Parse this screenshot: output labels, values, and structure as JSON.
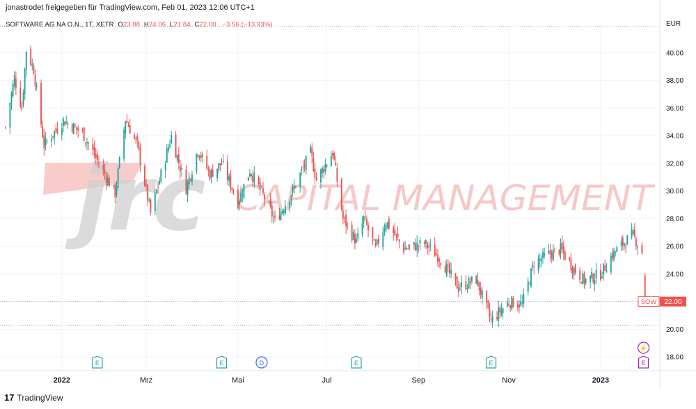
{
  "header": {
    "text": "jonastrodet freigegeben für TradingView.com, Feb 01, 2023 12:06 UTC+1"
  },
  "legend": {
    "symbol": "SOFTWARE AG NA O.N., 1T, XETR",
    "open_label": "O",
    "open": "23.88",
    "high_label": "H",
    "high": "24.06",
    "low_label": "L",
    "low": "21.84",
    "close_label": "C",
    "close": "22.00",
    "change": "−3.56 (−13.93%)"
  },
  "watermark": {
    "logo_text": "jrc",
    "company": "CAPITAL MANAGEMENT"
  },
  "price_tag": {
    "symbol": "SOW",
    "value": "22.00"
  },
  "footer": {
    "logo_mark": "17",
    "brand": "TradingView"
  },
  "colors": {
    "up": "#26a69a",
    "down": "#ef5350",
    "watermark": "#f6c6c4",
    "watermark_gray": "#d0d0d0",
    "earnings_badge": "#26a69a",
    "dividend_badge": "#2962ff",
    "upcoming_badge": "#9c27b0"
  },
  "chart_data": {
    "type": "candlestick",
    "unit": "EUR",
    "ylim": [
      17.3,
      41.8
    ],
    "y_ticks": [
      "18.00",
      "20.00",
      "22.00",
      "24.00",
      "26.00",
      "28.00",
      "30.00",
      "32.00",
      "34.00",
      "36.00",
      "38.00",
      "40.00"
    ],
    "x_ticks": [
      {
        "label": "2022",
        "date": "2022-01-03"
      },
      {
        "label": "Mrz",
        "date": "2022-03-01"
      },
      {
        "label": "Mai",
        "date": "2022-05-02"
      },
      {
        "label": "Jul",
        "date": "2022-07-01"
      },
      {
        "label": "Sep",
        "date": "2022-09-01"
      },
      {
        "label": "Nov",
        "date": "2022-11-01"
      },
      {
        "label": "2023",
        "date": "2023-01-02"
      }
    ],
    "x_range": [
      "2021-11-26",
      "2023-02-11"
    ],
    "reference_lines": [
      20.3
    ],
    "events": [
      {
        "type": "earnings",
        "label": "E",
        "date": "2022-01-27"
      },
      {
        "type": "earnings",
        "label": "E",
        "date": "2022-04-21"
      },
      {
        "type": "dividend",
        "label": "D",
        "date": "2022-05-18"
      },
      {
        "type": "earnings",
        "label": "E",
        "date": "2022-07-21"
      },
      {
        "type": "earnings",
        "label": "E",
        "date": "2022-10-20"
      },
      {
        "type": "earnings",
        "label": "E",
        "date": "2023-01-31",
        "upcoming": true
      },
      {
        "type": "news",
        "label": "⚡",
        "date": "2023-01-31"
      }
    ],
    "close_path": [
      {
        "date": "2021-11-26",
        "close": 34.6
      },
      {
        "date": "2021-12-02",
        "close": 38.2
      },
      {
        "date": "2021-12-07",
        "close": 36.0
      },
      {
        "date": "2021-12-10",
        "close": 40.2
      },
      {
        "date": "2021-12-15",
        "close": 38.8
      },
      {
        "date": "2021-12-22",
        "close": 33.3
      },
      {
        "date": "2022-01-04",
        "close": 35.1
      },
      {
        "date": "2022-01-17",
        "close": 34.2
      },
      {
        "date": "2022-01-28",
        "close": 32.0
      },
      {
        "date": "2022-02-08",
        "close": 29.8
      },
      {
        "date": "2022-02-15",
        "close": 35.2
      },
      {
        "date": "2022-02-23",
        "close": 33.3
      },
      {
        "date": "2022-03-04",
        "close": 28.4
      },
      {
        "date": "2022-03-18",
        "close": 34.0
      },
      {
        "date": "2022-03-28",
        "close": 30.2
      },
      {
        "date": "2022-04-05",
        "close": 33.0
      },
      {
        "date": "2022-04-13",
        "close": 31.2
      },
      {
        "date": "2022-04-21",
        "close": 32.0
      },
      {
        "date": "2022-05-02",
        "close": 29.2
      },
      {
        "date": "2022-05-10",
        "close": 31.5
      },
      {
        "date": "2022-05-20",
        "close": 29.5
      },
      {
        "date": "2022-05-27",
        "close": 27.8
      },
      {
        "date": "2022-06-08",
        "close": 30.0
      },
      {
        "date": "2022-06-20",
        "close": 32.8
      },
      {
        "date": "2022-06-24",
        "close": 30.8
      },
      {
        "date": "2022-07-05",
        "close": 32.8
      },
      {
        "date": "2022-07-12",
        "close": 28.0
      },
      {
        "date": "2022-07-21",
        "close": 26.3
      },
      {
        "date": "2022-07-26",
        "close": 28.0
      },
      {
        "date": "2022-08-03",
        "close": 25.8
      },
      {
        "date": "2022-08-10",
        "close": 27.8
      },
      {
        "date": "2022-08-22",
        "close": 25.8
      },
      {
        "date": "2022-09-05",
        "close": 26.2
      },
      {
        "date": "2022-09-15",
        "close": 25.2
      },
      {
        "date": "2022-09-28",
        "close": 23.0
      },
      {
        "date": "2022-10-10",
        "close": 23.6
      },
      {
        "date": "2022-10-20",
        "close": 20.6
      },
      {
        "date": "2022-11-01",
        "close": 22.0
      },
      {
        "date": "2022-11-10",
        "close": 21.8
      },
      {
        "date": "2022-11-18",
        "close": 24.8
      },
      {
        "date": "2022-11-28",
        "close": 25.4
      },
      {
        "date": "2022-12-06",
        "close": 25.8
      },
      {
        "date": "2022-12-14",
        "close": 24.5
      },
      {
        "date": "2022-12-22",
        "close": 23.5
      },
      {
        "date": "2023-01-02",
        "close": 24.0
      },
      {
        "date": "2023-01-10",
        "close": 25.4
      },
      {
        "date": "2023-01-17",
        "close": 26.2
      },
      {
        "date": "2023-01-24",
        "close": 26.8
      },
      {
        "date": "2023-01-30",
        "close": 25.56
      }
    ],
    "last_candle": {
      "date": "2023-02-01",
      "open": 23.88,
      "high": 24.06,
      "low": 21.84,
      "close": 22.0
    }
  }
}
